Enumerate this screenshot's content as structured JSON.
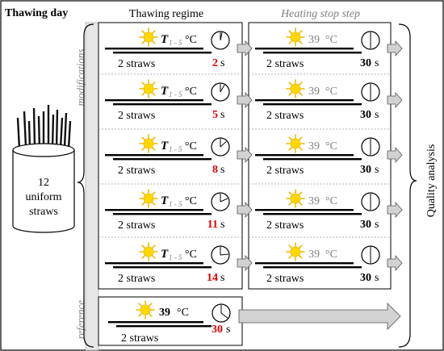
{
  "header": {
    "title": "Thawing day"
  },
  "straw_cup": {
    "count": "12",
    "line1": "uniform",
    "line2": "straws"
  },
  "side_labels": {
    "modifications": "modifications",
    "reference": "reference",
    "quality": "Quality analysis"
  },
  "columns": {
    "regime": "Thawing regime",
    "stop": "Heating stop step"
  },
  "temp": {
    "t_main": "T",
    "t_sub": "1 - 5",
    "unit": "°C",
    "stop_value": "39",
    "ref_value": "39"
  },
  "strap_label": "2 straws",
  "time_unit": "s",
  "rows": [
    {
      "time": "2",
      "stop_time": "30"
    },
    {
      "time": "5",
      "stop_time": "30"
    },
    {
      "time": "8",
      "stop_time": "30"
    },
    {
      "time": "11",
      "stop_time": "30"
    },
    {
      "time": "14",
      "stop_time": "30"
    }
  ],
  "reference": {
    "time": "30"
  },
  "colors": {
    "accent_red": "#e00000",
    "sun_fill": "#ffd800",
    "sun_ray": "#f2b800",
    "grey_text": "#808080",
    "panel_bg": "#e6e6e6",
    "arrow_fill": "#d2d2d2"
  },
  "icons": {
    "sun": "sun-icon",
    "clock": "clock-icon",
    "arrow": "arrow-right-icon"
  }
}
